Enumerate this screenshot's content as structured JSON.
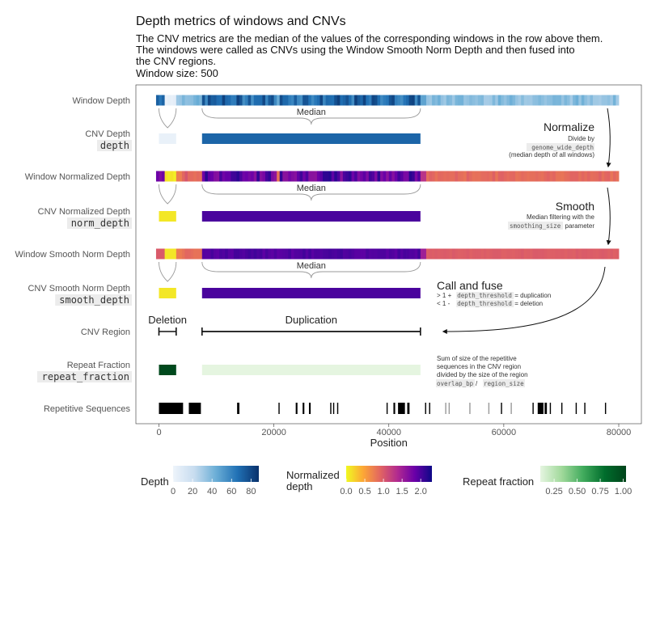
{
  "title": "Depth metrics of windows and CNVs",
  "subtitle": "The CNV metrics are the median of the values of the corresponding windows in the row above them.\nThe windows were called as CNVs using the Window Smooth Norm Depth and then fused into\nthe CNV regions.",
  "window_size_label": "Window size:  500",
  "chart_data": {
    "type": "heatmap",
    "xlabel": "Position",
    "xlim": [
      -4000,
      84000
    ],
    "x_ticks": [
      0,
      20000,
      40000,
      60000,
      80000
    ],
    "x_tick_labels": [
      "0",
      "20000",
      "40000",
      "60000",
      "80000"
    ],
    "rows": [
      {
        "label": "Window Depth",
        "code": ""
      },
      {
        "label": "CNV Depth",
        "code": "depth"
      },
      {
        "label": "Window Normalized Depth",
        "code": ""
      },
      {
        "label": "CNV Normalized Depth",
        "code": "norm_depth"
      },
      {
        "label": "Window Smooth Norm Depth",
        "code": ""
      },
      {
        "label": "CNV Smooth Norm Depth",
        "code": "smooth_depth"
      },
      {
        "label": "CNV Region",
        "code": ""
      },
      {
        "label": "Repeat Fraction",
        "code": "repeat_fraction"
      },
      {
        "label": "Repetitive Sequences",
        "code": ""
      }
    ],
    "cnvs": [
      {
        "type": "Deletion",
        "start": 0,
        "end": 3000,
        "depth": 3,
        "norm_depth": 0.1,
        "smooth_depth": 0.1,
        "repeat_fraction": 1.0
      },
      {
        "type": "Duplication",
        "start": 7500,
        "end": 45500,
        "depth": 70,
        "norm_depth": 2.0,
        "smooth_depth": 2.0,
        "repeat_fraction": 0.1
      }
    ],
    "annotations": {
      "median": "Median",
      "normalize_title": "Normalize",
      "normalize_line1": "Divide by",
      "normalize_code": "genome_wide_depth",
      "normalize_line3": "(median depth of all windows)",
      "smooth_title": "Smooth",
      "smooth_line1": "Median filtering with the",
      "smooth_code": "smoothing_size",
      "smooth_line2": "parameter",
      "call_title": "Call and fuse",
      "call_line1_pre": "> 1 + ",
      "call_line1_code": "depth_threshold",
      "call_line1_post": " = duplication",
      "call_line2_pre": "< 1 - ",
      "call_line2_code": "depth_threshold",
      "call_line2_post": " = deletion",
      "repeat_line1": "Sum of size of the repetitive",
      "repeat_line2": "sequences in the CNV region",
      "repeat_line3": "divided by the size of the region",
      "repeat_code1": "overlap_bp",
      "repeat_sep": " / ",
      "repeat_code2": "region_size"
    },
    "repetitive_sequences": [
      [
        0,
        4200
      ],
      [
        5200,
        7300
      ],
      [
        13600,
        14000
      ],
      [
        20800,
        21000
      ],
      [
        23800,
        24100
      ],
      [
        25000,
        25300
      ],
      [
        26100,
        26400
      ],
      [
        29800,
        30000
      ],
      [
        30300,
        30500
      ],
      [
        31000,
        31200
      ],
      [
        39600,
        39800
      ],
      [
        40800,
        41100
      ],
      [
        41600,
        42800
      ],
      [
        43200,
        43600
      ],
      [
        46300,
        46500
      ],
      [
        47000,
        47200
      ],
      [
        49800,
        50000
      ],
      [
        50400,
        50600
      ],
      [
        54000,
        54200
      ],
      [
        57300,
        57500
      ],
      [
        59500,
        59700
      ],
      [
        61200,
        61400
      ],
      [
        65000,
        65200
      ],
      [
        65900,
        66900
      ],
      [
        67100,
        67500
      ],
      [
        68000,
        68200
      ],
      [
        70000,
        70200
      ],
      [
        72500,
        72700
      ],
      [
        74000,
        74200
      ],
      [
        77600,
        77800
      ]
    ],
    "legends": [
      {
        "title": "Depth",
        "colors": [
          "#eef4fb",
          "#c7dcef",
          "#6baed6",
          "#2171b5",
          "#08306b"
        ],
        "ticks": [
          0,
          20,
          40,
          60,
          80
        ],
        "tick_labels": [
          "0",
          "20",
          "40",
          "60",
          "80"
        ],
        "range": [
          0,
          88
        ]
      },
      {
        "title": "Normalized\ndepth",
        "colors": [
          "#f0f921",
          "#fca636",
          "#e16462",
          "#b12a90",
          "#6a00a8",
          "#0d0887"
        ],
        "ticks": [
          0,
          0.5,
          1.0,
          1.5,
          2.0
        ],
        "tick_labels": [
          "0.0",
          "0.5",
          "1.0",
          "1.5",
          "2.0"
        ],
        "range": [
          0,
          2.3
        ]
      },
      {
        "title": "Repeat fraction",
        "colors": [
          "#e5f5e0",
          "#a1d99b",
          "#41ab5d",
          "#006d2c",
          "#00441b"
        ],
        "ticks": [
          0.25,
          0.5,
          0.75,
          1.0
        ],
        "tick_labels": [
          "0.25",
          "0.50",
          "0.75",
          "1.00"
        ],
        "range": [
          0.1,
          1.03
        ]
      }
    ]
  }
}
